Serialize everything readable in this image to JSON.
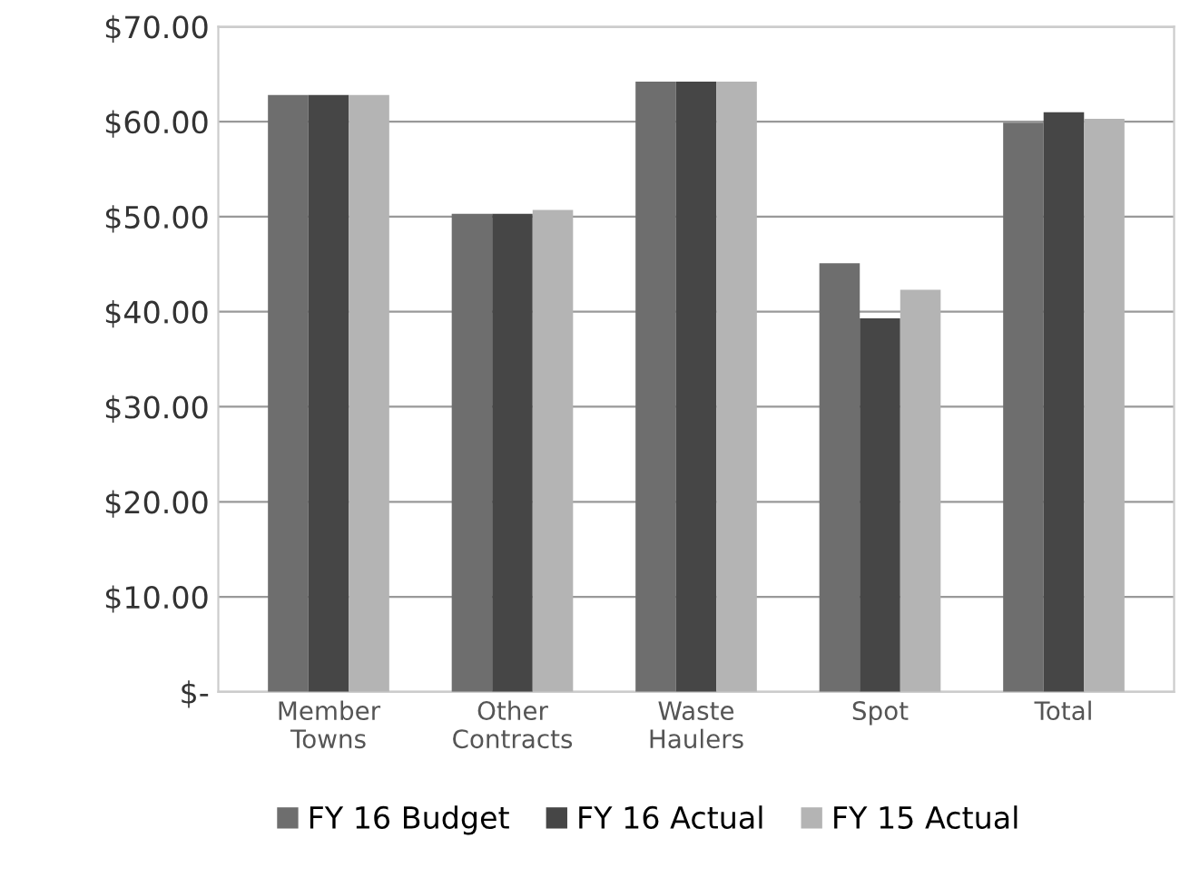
{
  "chart_data": {
    "type": "bar",
    "categories": [
      "Member\nTowns",
      "Other\nContracts",
      "Waste\nHaulers",
      "Spot",
      "Total"
    ],
    "series": [
      {
        "name": "FY 16 Budget",
        "color": "#6e6e6e",
        "values": [
          62.8,
          50.3,
          64.2,
          45.1,
          59.9
        ]
      },
      {
        "name": "FY 16 Actual",
        "color": "#464646",
        "values": [
          62.8,
          50.3,
          64.2,
          39.3,
          61.0
        ]
      },
      {
        "name": "FY 15 Actual",
        "color": "#b4b4b4",
        "values": [
          62.8,
          50.7,
          64.2,
          42.3,
          60.3
        ]
      }
    ],
    "ylim": [
      0,
      70
    ],
    "yticks": [
      {
        "value": 0,
        "label": "$-"
      },
      {
        "value": 10,
        "label": "$10.00"
      },
      {
        "value": 20,
        "label": "$20.00"
      },
      {
        "value": 30,
        "label": "$30.00"
      },
      {
        "value": 40,
        "label": "$40.00"
      },
      {
        "value": 50,
        "label": "$50.00"
      },
      {
        "value": 60,
        "label": "$60.00"
      },
      {
        "value": 70,
        "label": "$70.00"
      }
    ],
    "grid": "y",
    "legend": "bottom"
  }
}
